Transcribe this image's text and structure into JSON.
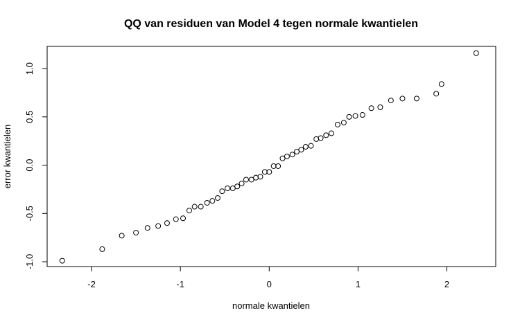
{
  "chart_data": {
    "type": "scatter",
    "title": "QQ van residuen van Model 4 tegen normale kwantielen",
    "xlabel": "normale kwantielen",
    "ylabel": "error kwantielen",
    "xlim": [
      -2.5,
      2.55
    ],
    "ylim": [
      -1.05,
      1.23
    ],
    "x_ticks": [
      -2,
      -1,
      0,
      1,
      2
    ],
    "x_tick_labels": [
      "-2",
      "-1",
      "0",
      "1",
      "2"
    ],
    "y_ticks": [
      -1.0,
      -0.5,
      0.0,
      0.5,
      1.0
    ],
    "y_tick_labels": [
      "-1.0",
      "-0.5",
      "0.0",
      "0.5",
      "1.0"
    ],
    "grid": false,
    "points": [
      {
        "x": -2.33,
        "y": -0.99
      },
      {
        "x": -1.88,
        "y": -0.87
      },
      {
        "x": -1.66,
        "y": -0.73
      },
      {
        "x": -1.5,
        "y": -0.7
      },
      {
        "x": -1.37,
        "y": -0.65
      },
      {
        "x": -1.25,
        "y": -0.63
      },
      {
        "x": -1.15,
        "y": -0.6
      },
      {
        "x": -1.05,
        "y": -0.56
      },
      {
        "x": -0.97,
        "y": -0.55
      },
      {
        "x": -0.9,
        "y": -0.47
      },
      {
        "x": -0.84,
        "y": -0.43
      },
      {
        "x": -0.77,
        "y": -0.43
      },
      {
        "x": -0.7,
        "y": -0.39
      },
      {
        "x": -0.64,
        "y": -0.37
      },
      {
        "x": -0.58,
        "y": -0.34
      },
      {
        "x": -0.53,
        "y": -0.27
      },
      {
        "x": -0.47,
        "y": -0.24
      },
      {
        "x": -0.41,
        "y": -0.24
      },
      {
        "x": -0.36,
        "y": -0.22
      },
      {
        "x": -0.31,
        "y": -0.19
      },
      {
        "x": -0.26,
        "y": -0.15
      },
      {
        "x": -0.2,
        "y": -0.15
      },
      {
        "x": -0.15,
        "y": -0.13
      },
      {
        "x": -0.1,
        "y": -0.12
      },
      {
        "x": -0.05,
        "y": -0.07
      },
      {
        "x": 0.0,
        "y": -0.07
      },
      {
        "x": 0.05,
        "y": -0.01
      },
      {
        "x": 0.1,
        "y": -0.01
      },
      {
        "x": 0.15,
        "y": 0.07
      },
      {
        "x": 0.2,
        "y": 0.09
      },
      {
        "x": 0.26,
        "y": 0.11
      },
      {
        "x": 0.31,
        "y": 0.14
      },
      {
        "x": 0.36,
        "y": 0.16
      },
      {
        "x": 0.41,
        "y": 0.19
      },
      {
        "x": 0.47,
        "y": 0.2
      },
      {
        "x": 0.53,
        "y": 0.27
      },
      {
        "x": 0.58,
        "y": 0.28
      },
      {
        "x": 0.64,
        "y": 0.31
      },
      {
        "x": 0.7,
        "y": 0.33
      },
      {
        "x": 0.77,
        "y": 0.42
      },
      {
        "x": 0.84,
        "y": 0.44
      },
      {
        "x": 0.9,
        "y": 0.5
      },
      {
        "x": 0.97,
        "y": 0.51
      },
      {
        "x": 1.05,
        "y": 0.52
      },
      {
        "x": 1.15,
        "y": 0.59
      },
      {
        "x": 1.25,
        "y": 0.6
      },
      {
        "x": 1.37,
        "y": 0.67
      },
      {
        "x": 1.5,
        "y": 0.69
      },
      {
        "x": 1.66,
        "y": 0.69
      },
      {
        "x": 1.88,
        "y": 0.74
      },
      {
        "x": 1.94,
        "y": 0.84
      },
      {
        "x": 2.33,
        "y": 1.16
      }
    ]
  }
}
